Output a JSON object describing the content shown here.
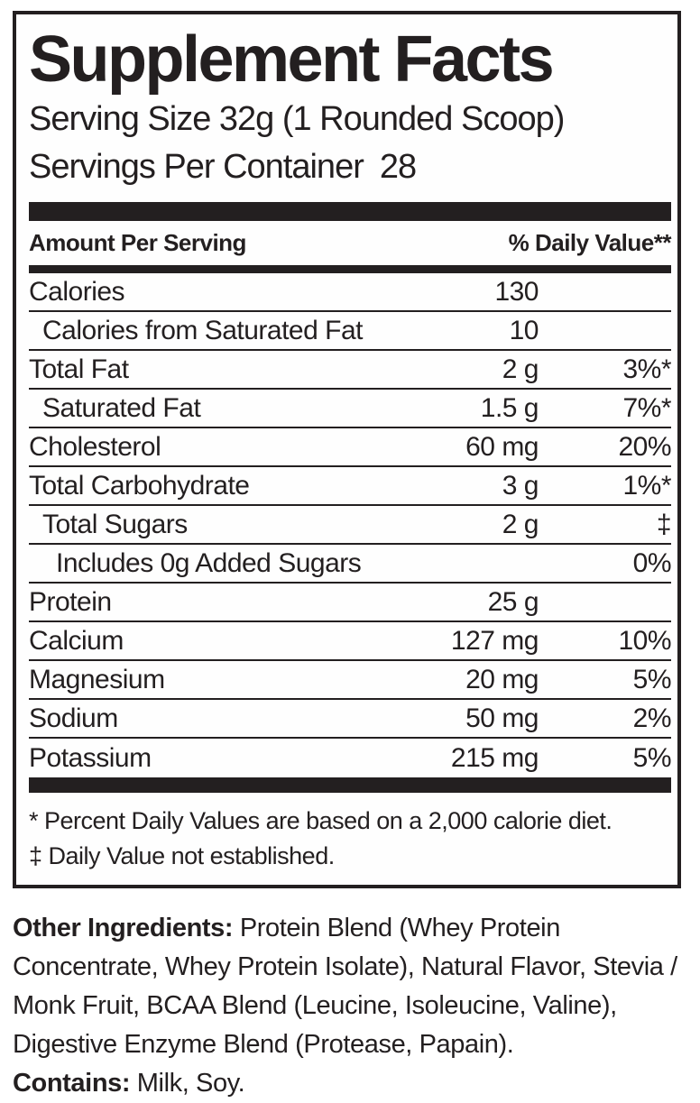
{
  "panel": {
    "title": "Supplement Facts",
    "serving_size_line": "Serving Size 32g (1 Rounded Scoop)",
    "servings_label": "Servings Per Container",
    "servings_value": "28",
    "col_amount_header": "Amount Per Serving",
    "col_dv_header": "% Daily Value**"
  },
  "rows": [
    {
      "name": "Calories",
      "amount": "130",
      "dv": "",
      "indent": 0
    },
    {
      "name": "Calories from Saturated Fat",
      "amount": "10",
      "dv": "",
      "indent": 1
    },
    {
      "name": "Total Fat",
      "amount": "2 g",
      "dv": "3%*",
      "indent": 0
    },
    {
      "name": "Saturated Fat",
      "amount": "1.5 g",
      "dv": "7%*",
      "indent": 1
    },
    {
      "name": "Cholesterol",
      "amount": "60 mg",
      "dv": "20%",
      "indent": 0
    },
    {
      "name": "Total Carbohydrate",
      "amount": "3 g",
      "dv": "1%*",
      "indent": 0
    },
    {
      "name": "Total Sugars",
      "amount": "2 g",
      "dv": "‡",
      "indent": 1
    },
    {
      "name": "Includes 0g Added Sugars",
      "amount": "",
      "dv": "0%",
      "indent": 2
    },
    {
      "name": "Protein",
      "amount": "25 g",
      "dv": "",
      "indent": 0
    },
    {
      "name": "Calcium",
      "amount": "127 mg",
      "dv": "10%",
      "indent": 0
    },
    {
      "name": "Magnesium",
      "amount": "20 mg",
      "dv": "5%",
      "indent": 0
    },
    {
      "name": "Sodium",
      "amount": "50 mg",
      "dv": "2%",
      "indent": 0
    },
    {
      "name": "Potassium",
      "amount": "215 mg",
      "dv": "5%",
      "indent": 0
    }
  ],
  "footnotes": [
    "* Percent Daily Values are based on a 2,000 calorie diet.",
    "‡ Daily Value not established."
  ],
  "ingredients": {
    "heading": "Other Ingredients:",
    "text": "Protein Blend (Whey Protein Concentrate, Whey Protein Isolate), Natural Flavor, Stevia / Monk Fruit, BCAA Blend (Leucine, Isoleucine, Valine), Digestive Enzyme Blend (Protease, Papain).",
    "contains_heading": "Contains:",
    "contains_text": "Milk, Soy."
  },
  "colors": {
    "ink": "#231f20",
    "background": "#ffffff"
  }
}
